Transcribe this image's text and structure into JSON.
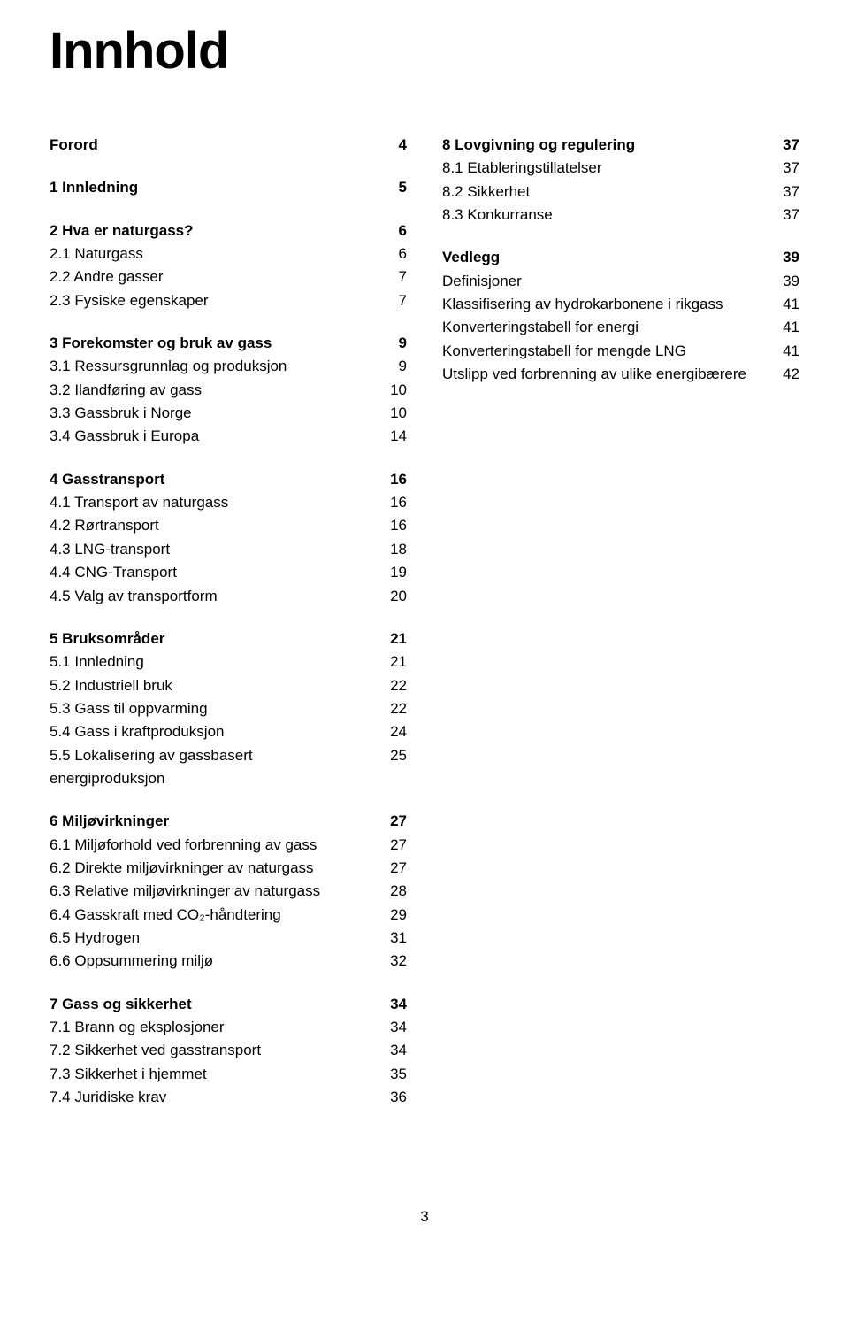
{
  "title": "Innhold",
  "page_number": "3",
  "colors": {
    "text": "#000000",
    "background": "#ffffff"
  },
  "typography": {
    "title_fontsize": 58,
    "body_fontsize": 17,
    "line_height": 1.55
  },
  "left_sections": [
    {
      "rows": [
        {
          "label": "Forord",
          "page": "4",
          "bold": true
        }
      ]
    },
    {
      "rows": [
        {
          "label": "1 Innledning",
          "page": "5",
          "bold": true
        }
      ]
    },
    {
      "rows": [
        {
          "label": "2 Hva er naturgass?",
          "page": "6",
          "bold": true
        },
        {
          "label": "2.1 Naturgass",
          "page": "6",
          "bold": false
        },
        {
          "label": "2.2 Andre gasser",
          "page": "7",
          "bold": false
        },
        {
          "label": "2.3 Fysiske egenskaper",
          "page": "7",
          "bold": false
        }
      ]
    },
    {
      "rows": [
        {
          "label": "3 Forekomster og bruk av gass",
          "page": "9",
          "bold": true
        },
        {
          "label": "3.1 Ressursgrunnlag og produksjon",
          "page": "9",
          "bold": false
        },
        {
          "label": "3.2 Ilandføring av gass",
          "page": "10",
          "bold": false
        },
        {
          "label": "3.3 Gassbruk i Norge",
          "page": "10",
          "bold": false
        },
        {
          "label": "3.4 Gassbruk i Europa",
          "page": "14",
          "bold": false
        }
      ]
    },
    {
      "rows": [
        {
          "label": "4 Gasstransport",
          "page": "16",
          "bold": true
        },
        {
          "label": "4.1 Transport av naturgass",
          "page": "16",
          "bold": false
        },
        {
          "label": "4.2 Rørtransport",
          "page": "16",
          "bold": false
        },
        {
          "label": "4.3 LNG-transport",
          "page": "18",
          "bold": false
        },
        {
          "label": "4.4 CNG-Transport",
          "page": "19",
          "bold": false
        },
        {
          "label": "4.5 Valg av transportform",
          "page": "20",
          "bold": false
        }
      ]
    },
    {
      "rows": [
        {
          "label": "5 Bruksområder",
          "page": "21",
          "bold": true
        },
        {
          "label": "5.1 Innledning",
          "page": "21",
          "bold": false
        },
        {
          "label": "5.2 Industriell bruk",
          "page": "22",
          "bold": false
        },
        {
          "label": "5.3 Gass til oppvarming",
          "page": "22",
          "bold": false
        },
        {
          "label": "5.4 Gass i kraftproduksjon",
          "page": "24",
          "bold": false
        },
        {
          "label": "5.5 Lokalisering av gassbasert energiproduksjon",
          "page": "25",
          "bold": false
        }
      ]
    },
    {
      "rows": [
        {
          "label": "6 Miljøvirkninger",
          "page": "27",
          "bold": true
        },
        {
          "label": "6.1 Miljøforhold ved forbrenning av gass",
          "page": "27",
          "bold": false
        },
        {
          "label": "6.2 Direkte miljøvirkninger av naturgass",
          "page": "27",
          "bold": false
        },
        {
          "label": "6.3 Relative miljøvirkninger av naturgass",
          "page": "28",
          "bold": false
        },
        {
          "label": "6.4 Gasskraft med CO₂-håndtering",
          "page": "29",
          "bold": false
        },
        {
          "label": "6.5 Hydrogen",
          "page": "31",
          "bold": false
        },
        {
          "label": "6.6 Oppsummering miljø",
          "page": "32",
          "bold": false
        }
      ]
    },
    {
      "rows": [
        {
          "label": "7 Gass og sikkerhet",
          "page": "34",
          "bold": true
        },
        {
          "label": "7.1 Brann og eksplosjoner",
          "page": "34",
          "bold": false
        },
        {
          "label": "7.2 Sikkerhet ved gasstransport",
          "page": "34",
          "bold": false
        },
        {
          "label": "7.3 Sikkerhet i hjemmet",
          "page": "35",
          "bold": false
        },
        {
          "label": "7.4 Juridiske krav",
          "page": "36",
          "bold": false
        }
      ]
    }
  ],
  "right_sections": [
    {
      "rows": [
        {
          "label": "8 Lovgivning og regulering",
          "page": "37",
          "bold": true
        },
        {
          "label": "8.1 Etableringstillatelser",
          "page": "37",
          "bold": false
        },
        {
          "label": "8.2 Sikkerhet",
          "page": "37",
          "bold": false
        },
        {
          "label": "8.3 Konkurranse",
          "page": "37",
          "bold": false
        }
      ]
    },
    {
      "rows": [
        {
          "label": "Vedlegg",
          "page": "39",
          "bold": true
        },
        {
          "label": "Definisjoner",
          "page": "39",
          "bold": false
        },
        {
          "label": "Klassifisering av hydrokarbonene i rikgass",
          "page": "41",
          "bold": false
        },
        {
          "label": "Konverteringstabell for energi",
          "page": "41",
          "bold": false
        },
        {
          "label": "Konverteringstabell for mengde LNG",
          "page": "41",
          "bold": false
        },
        {
          "label": "Utslipp ved forbrenning av ulike energibærere",
          "page": "42",
          "bold": false
        }
      ]
    }
  ]
}
